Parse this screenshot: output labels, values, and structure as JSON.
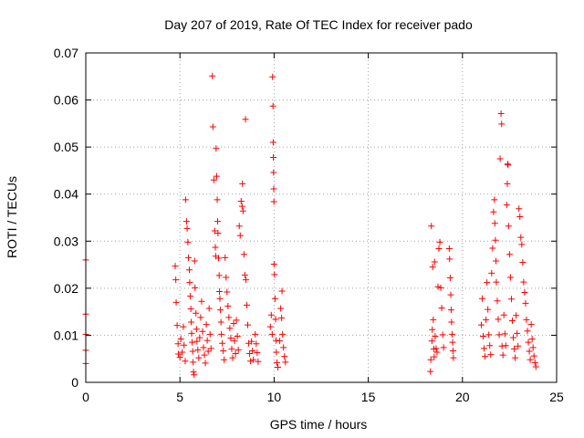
{
  "chart_data": {
    "type": "scatter",
    "title": "Day 207 of 2019, Rate Of TEC Index for receiver pado",
    "xlabel": "GPS time / hours",
    "ylabel": "ROTI / TECUs",
    "xlim": [
      0,
      25
    ],
    "ylim": [
      0,
      0.07
    ],
    "x_ticks": [
      0,
      5,
      10,
      15,
      20,
      25
    ],
    "x_tick_labels": [
      "0",
      "5",
      "10",
      "15",
      "20",
      "25"
    ],
    "y_ticks": [
      0,
      0.01,
      0.02,
      0.03,
      0.04,
      0.05,
      0.06,
      0.07
    ],
    "y_tick_labels": [
      "0",
      "0.01",
      "0.02",
      "0.03",
      "0.04",
      "0.05",
      "0.06",
      "0.07"
    ],
    "grid": true,
    "marker": "+",
    "color": "#ff0000",
    "series": [
      {
        "name": "ROTI",
        "points": [
          [
            0.0,
            0.026
          ],
          [
            0.0,
            0.0145
          ],
          [
            0.0,
            0.0102
          ],
          [
            0.0,
            0.0068
          ],
          [
            0.0,
            0.004
          ],
          [
            4.75,
            0.0247
          ],
          [
            4.78,
            0.0218
          ],
          [
            4.8,
            0.017
          ],
          [
            4.85,
            0.0121
          ],
          [
            4.9,
            0.0082
          ],
          [
            4.92,
            0.006
          ],
          [
            5.0,
            0.0053
          ],
          [
            5.05,
            0.0092
          ],
          [
            5.12,
            0.0064
          ],
          [
            5.18,
            0.0118
          ],
          [
            5.22,
            0.0079
          ],
          [
            5.28,
            0.0045
          ],
          [
            5.3,
            0.0388
          ],
          [
            5.35,
            0.0342
          ],
          [
            5.38,
            0.0327
          ],
          [
            5.42,
            0.0298
          ],
          [
            5.45,
            0.0265
          ],
          [
            5.5,
            0.0239
          ],
          [
            5.52,
            0.0212
          ],
          [
            5.55,
            0.0183
          ],
          [
            5.58,
            0.0156
          ],
          [
            5.6,
            0.0128
          ],
          [
            5.62,
            0.0104
          ],
          [
            5.65,
            0.0085
          ],
          [
            5.68,
            0.0066
          ],
          [
            5.7,
            0.0043
          ],
          [
            5.72,
            0.0022
          ],
          [
            5.75,
            0.0016
          ],
          [
            5.78,
            0.0258
          ],
          [
            5.8,
            0.0201
          ],
          [
            5.85,
            0.0147
          ],
          [
            5.88,
            0.0113
          ],
          [
            5.9,
            0.0087
          ],
          [
            5.95,
            0.0069
          ],
          [
            6.0,
            0.0052
          ],
          [
            6.05,
            0.0095
          ],
          [
            6.1,
            0.0138
          ],
          [
            6.15,
            0.0172
          ],
          [
            6.2,
            0.0108
          ],
          [
            6.25,
            0.0074
          ],
          [
            6.3,
            0.0058
          ],
          [
            6.35,
            0.0041
          ],
          [
            6.4,
            0.0123
          ],
          [
            6.45,
            0.0089
          ],
          [
            6.5,
            0.0066
          ],
          [
            6.55,
            0.0157
          ],
          [
            6.6,
            0.0102
          ],
          [
            6.65,
            0.0072
          ],
          [
            6.72,
            0.0651
          ],
          [
            6.75,
            0.0543
          ],
          [
            6.8,
            0.043
          ],
          [
            6.85,
            0.0322
          ],
          [
            6.88,
            0.0287
          ],
          [
            6.9,
            0.0268
          ],
          [
            6.92,
            0.0497
          ],
          [
            6.95,
            0.0438
          ],
          [
            6.98,
            0.0388
          ],
          [
            7.0,
            0.0342
          ],
          [
            7.02,
            0.0317
          ],
          [
            7.05,
            0.0264
          ],
          [
            7.08,
            0.0227
          ],
          [
            7.1,
            0.0193
          ],
          [
            7.12,
            0.0178
          ],
          [
            7.15,
            0.0154
          ],
          [
            7.18,
            0.0128
          ],
          [
            7.2,
            0.0102
          ],
          [
            7.25,
            0.0083
          ],
          [
            7.3,
            0.0067
          ],
          [
            7.35,
            0.0048
          ],
          [
            7.4,
            0.0265
          ],
          [
            7.45,
            0.0223
          ],
          [
            7.5,
            0.0192
          ],
          [
            7.55,
            0.0162
          ],
          [
            7.6,
            0.0138
          ],
          [
            7.65,
            0.0115
          ],
          [
            7.7,
            0.0094
          ],
          [
            7.75,
            0.0071
          ],
          [
            7.8,
            0.0052
          ],
          [
            7.85,
            0.0125
          ],
          [
            7.9,
            0.0088
          ],
          [
            7.95,
            0.0061
          ],
          [
            8.0,
            0.0132
          ],
          [
            8.05,
            0.0098
          ],
          [
            8.1,
            0.0069
          ],
          [
            8.15,
            0.0332
          ],
          [
            8.2,
            0.0312
          ],
          [
            8.25,
            0.0385
          ],
          [
            8.3,
            0.0374
          ],
          [
            8.32,
            0.0422
          ],
          [
            8.35,
            0.0364
          ],
          [
            8.4,
            0.0272
          ],
          [
            8.45,
            0.0228
          ],
          [
            8.48,
            0.0559
          ],
          [
            8.5,
            0.0218
          ],
          [
            8.55,
            0.0164
          ],
          [
            8.6,
            0.0122
          ],
          [
            8.65,
            0.0083
          ],
          [
            8.7,
            0.0061
          ],
          [
            8.75,
            0.0045
          ],
          [
            8.8,
            0.0087
          ],
          [
            8.85,
            0.0067
          ],
          [
            8.9,
            0.0048
          ],
          [
            9.0,
            0.0102
          ],
          [
            9.05,
            0.0082
          ],
          [
            9.1,
            0.0063
          ],
          [
            9.15,
            0.0044
          ],
          [
            9.8,
            0.0118
          ],
          [
            9.85,
            0.0143
          ],
          [
            9.9,
            0.0102
          ],
          [
            9.92,
            0.0649
          ],
          [
            9.94,
            0.0587
          ],
          [
            9.95,
            0.051
          ],
          [
            9.96,
            0.0478
          ],
          [
            9.97,
            0.0446
          ],
          [
            9.98,
            0.0411
          ],
          [
            9.99,
            0.0384
          ],
          [
            10.0,
            0.0251
          ],
          [
            10.02,
            0.0229
          ],
          [
            10.05,
            0.0178
          ],
          [
            10.08,
            0.0134
          ],
          [
            10.1,
            0.0089
          ],
          [
            10.12,
            0.0064
          ],
          [
            10.15,
            0.0042
          ],
          [
            10.2,
            0.0032
          ],
          [
            10.3,
            0.0088
          ],
          [
            10.35,
            0.0157
          ],
          [
            10.4,
            0.0137
          ],
          [
            10.42,
            0.0194
          ],
          [
            10.45,
            0.0102
          ],
          [
            10.5,
            0.0074
          ],
          [
            10.55,
            0.0055
          ],
          [
            10.6,
            0.0043
          ],
          [
            18.3,
            0.0023
          ],
          [
            18.32,
            0.0048
          ],
          [
            18.35,
            0.0332
          ],
          [
            18.38,
            0.0088
          ],
          [
            18.4,
            0.0112
          ],
          [
            18.42,
            0.0245
          ],
          [
            18.45,
            0.0133
          ],
          [
            18.48,
            0.0071
          ],
          [
            18.5,
            0.0054
          ],
          [
            18.52,
            0.0256
          ],
          [
            18.55,
            0.0098
          ],
          [
            18.6,
            0.0072
          ],
          [
            18.65,
            0.0064
          ],
          [
            18.7,
            0.0203
          ],
          [
            18.75,
            0.0284
          ],
          [
            18.8,
            0.0298
          ],
          [
            18.85,
            0.0201
          ],
          [
            18.9,
            0.0158
          ],
          [
            18.95,
            0.0101
          ],
          [
            19.0,
            0.0074
          ],
          [
            19.3,
            0.0284
          ],
          [
            19.32,
            0.0262
          ],
          [
            19.35,
            0.0222
          ],
          [
            19.38,
            0.0186
          ],
          [
            19.4,
            0.0154
          ],
          [
            19.42,
            0.0128
          ],
          [
            19.45,
            0.0102
          ],
          [
            19.48,
            0.0085
          ],
          [
            19.5,
            0.0067
          ],
          [
            19.52,
            0.0052
          ],
          [
            21.0,
            0.0122
          ],
          [
            21.05,
            0.0178
          ],
          [
            21.1,
            0.0098
          ],
          [
            21.15,
            0.0072
          ],
          [
            21.2,
            0.0055
          ],
          [
            21.25,
            0.0133
          ],
          [
            21.3,
            0.0212
          ],
          [
            21.35,
            0.0155
          ],
          [
            21.4,
            0.0101
          ],
          [
            21.45,
            0.0078
          ],
          [
            21.5,
            0.0059
          ],
          [
            21.55,
            0.0232
          ],
          [
            21.6,
            0.0285
          ],
          [
            21.65,
            0.0362
          ],
          [
            21.7,
            0.0388
          ],
          [
            21.72,
            0.0338
          ],
          [
            21.75,
            0.0302
          ],
          [
            21.78,
            0.0258
          ],
          [
            21.8,
            0.0213
          ],
          [
            21.85,
            0.0173
          ],
          [
            21.9,
            0.0134
          ],
          [
            21.95,
            0.0101
          ],
          [
            22.0,
            0.0475
          ],
          [
            22.05,
            0.0571
          ],
          [
            22.08,
            0.0549
          ],
          [
            22.1,
            0.0077
          ],
          [
            22.15,
            0.0058
          ],
          [
            22.2,
            0.0143
          ],
          [
            22.25,
            0.0103
          ],
          [
            22.3,
            0.0078
          ],
          [
            22.35,
            0.0377
          ],
          [
            22.38,
            0.0422
          ],
          [
            22.4,
            0.0464
          ],
          [
            22.42,
            0.0462
          ],
          [
            22.45,
            0.0332
          ],
          [
            22.5,
            0.0272
          ],
          [
            22.55,
            0.0223
          ],
          [
            22.6,
            0.0177
          ],
          [
            22.65,
            0.0131
          ],
          [
            22.7,
            0.0095
          ],
          [
            22.75,
            0.0071
          ],
          [
            22.8,
            0.0052
          ],
          [
            22.85,
            0.0142
          ],
          [
            22.9,
            0.0104
          ],
          [
            22.95,
            0.0077
          ],
          [
            23.0,
            0.0369
          ],
          [
            23.05,
            0.0352
          ],
          [
            23.1,
            0.0308
          ],
          [
            23.15,
            0.0293
          ],
          [
            23.2,
            0.0255
          ],
          [
            23.25,
            0.0213
          ],
          [
            23.3,
            0.0191
          ],
          [
            23.35,
            0.0168
          ],
          [
            23.4,
            0.0133
          ],
          [
            23.45,
            0.0109
          ],
          [
            23.5,
            0.0085
          ],
          [
            23.55,
            0.0066
          ],
          [
            23.6,
            0.0048
          ],
          [
            23.65,
            0.0123
          ],
          [
            23.7,
            0.0092
          ],
          [
            23.75,
            0.0074
          ],
          [
            23.8,
            0.0056
          ],
          [
            23.85,
            0.0042
          ],
          [
            23.9,
            0.0033
          ]
        ]
      }
    ]
  }
}
